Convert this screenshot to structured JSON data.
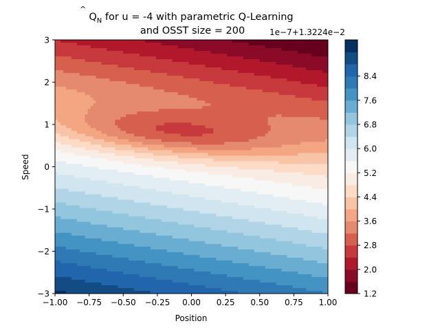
{
  "chart_data": {
    "type": "contourf",
    "title_prefix": "Q",
    "title_subscript": "N",
    "title_line1_rest": " for u = -4 with parametric Q-Learning",
    "title_line2": "and OSST size = 200",
    "xlabel": "Position",
    "ylabel": "Speed",
    "xlim": [
      -1.0,
      1.0
    ],
    "ylim": [
      -3,
      3
    ],
    "x_ticks": [
      "−1.00",
      "−0.75",
      "−0.50",
      "−0.25",
      "0.00",
      "0.25",
      "0.50",
      "0.75",
      "1.00"
    ],
    "y_ticks": [
      "−3",
      "−2",
      "−1",
      "0",
      "1",
      "2",
      "3"
    ],
    "colorbar": {
      "offset_label": "1e−7+1.3224e−2",
      "tick_labels": [
        "1.2",
        "2.0",
        "2.8",
        "3.6",
        "4.4",
        "5.2",
        "6.0",
        "6.8",
        "7.6",
        "8.4"
      ],
      "levels": [
        1.2,
        1.6,
        2.0,
        2.4,
        2.8,
        3.2,
        3.6,
        4.0,
        4.4,
        4.8,
        5.2,
        5.6,
        6.0,
        6.4,
        6.8,
        7.2,
        7.6,
        8.0,
        8.4,
        8.8
      ],
      "colormap": "RdBu",
      "colors": [
        "#67001f",
        "#8b0a28",
        "#b2182b",
        "#c7393c",
        "#d6604d",
        "#e58a6f",
        "#f4a582",
        "#f8c4a8",
        "#fddbc7",
        "#f9ece4",
        "#f7f7f7",
        "#e2eef4",
        "#d1e5f0",
        "#b1d4e7",
        "#92c5de",
        "#6aadd2",
        "#4393c3",
        "#2f79b5",
        "#2166ac",
        "#134b85",
        "#053061"
      ]
    },
    "grid": false,
    "field_description_hint": "min ~1.3 near (-0.75..0.5, ~1); values increase toward low position / negative speed corner; max ~8.8 at speed -3"
  }
}
